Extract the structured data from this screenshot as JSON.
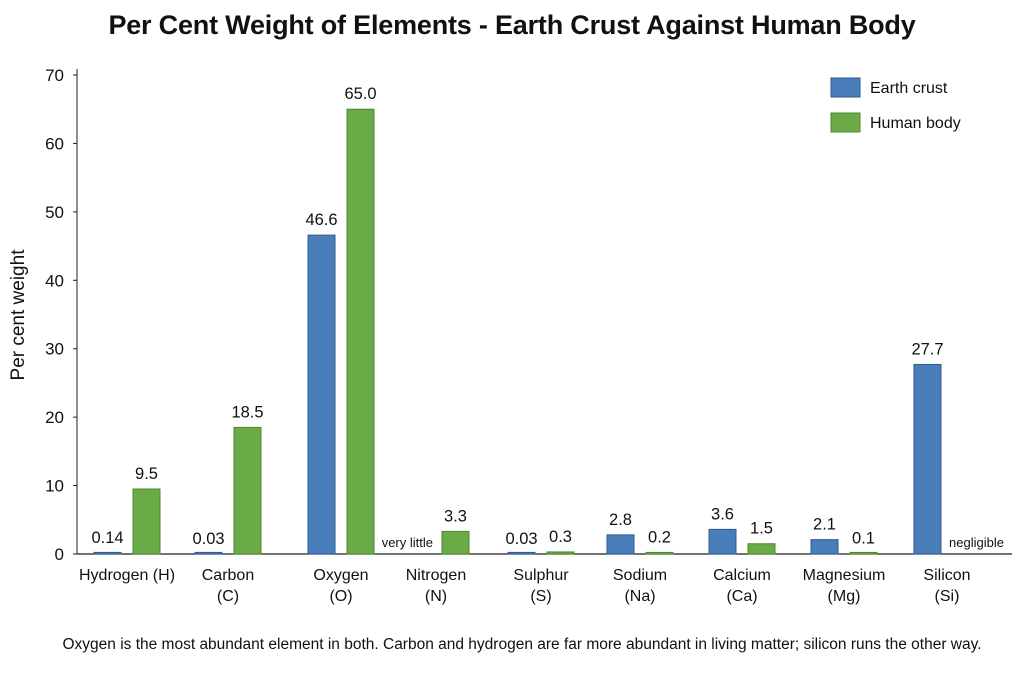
{
  "chart_data": {
    "type": "bar",
    "title": "Per Cent Weight of Elements - Earth Crust Against Human Body",
    "ylabel": "Per cent weight",
    "xlabel": "",
    "ylim": [
      0,
      70
    ],
    "yticks": [
      0,
      10,
      20,
      30,
      40,
      50,
      60,
      70
    ],
    "legend_position": "top-right",
    "grid": false,
    "categories": [
      [
        "Hydrogen (H)"
      ],
      [
        "Carbon",
        "(C)"
      ],
      [
        "Oxygen",
        "(O)"
      ],
      [
        "Nitrogen",
        "(N)"
      ],
      [
        "Sulphur",
        "(S)"
      ],
      [
        "Sodium",
        "(Na)"
      ],
      [
        "Calcium",
        "(Ca)"
      ],
      [
        "Magnesium",
        "(Mg)"
      ],
      [
        "Silicon",
        "(Si)"
      ]
    ],
    "series": [
      {
        "name": "Earth crust",
        "color": "#4a7ebb",
        "values": [
          0.14,
          0.03,
          46.6,
          null,
          0.03,
          2.8,
          3.6,
          2.1,
          27.7
        ],
        "labels": [
          "0.14",
          "0.03",
          "46.6",
          "very little",
          "0.03",
          "2.8",
          "3.6",
          "2.1",
          "27.7"
        ]
      },
      {
        "name": "Human body",
        "color": "#6aab45",
        "values": [
          9.5,
          18.5,
          65.0,
          3.3,
          0.3,
          0.2,
          1.5,
          0.1,
          null
        ],
        "labels": [
          "9.5",
          "18.5",
          "65.0",
          "3.3",
          "0.3",
          "0.2",
          "1.5",
          "0.1",
          "negligible"
        ]
      }
    ]
  },
  "footnote": "Oxygen is the most abundant element in both. Carbon and hydrogen are far more abundant in living matter; silicon runs the other way."
}
